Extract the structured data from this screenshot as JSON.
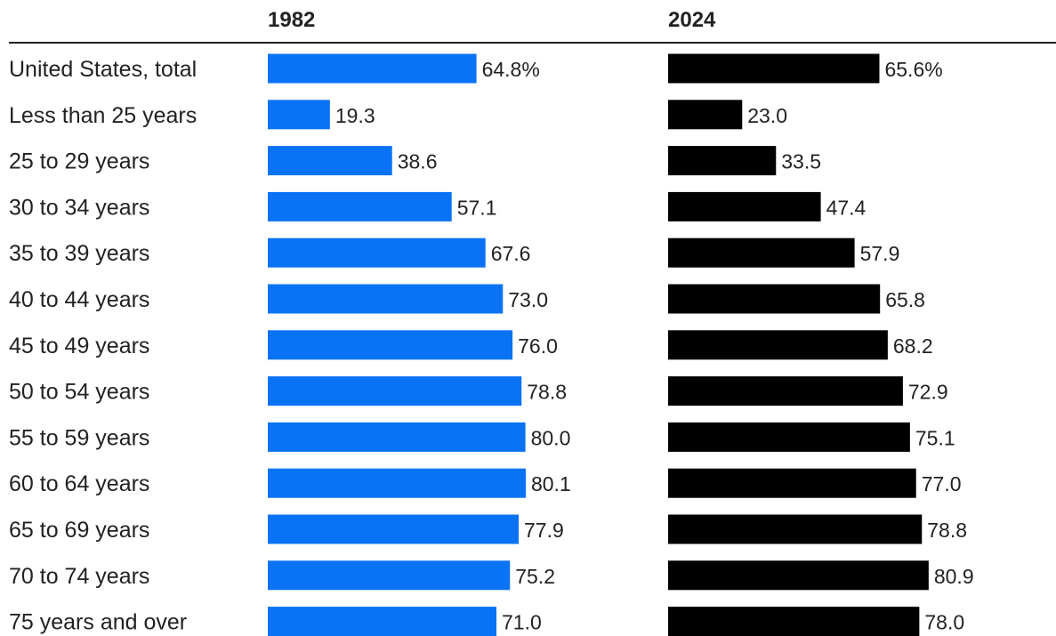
{
  "chart_data": {
    "type": "bar",
    "orientation": "horizontal",
    "categories": [
      "United States, total",
      "Less than 25 years",
      "25 to 29 years",
      "30 to 34 years",
      "35 to 39 years",
      "40 to 44 years",
      "45 to 49 years",
      "50 to 54 years",
      "55 to 59 years",
      "60 to 64 years",
      "65 to 69 years",
      "70 to 74 years",
      "75 years and over"
    ],
    "series": [
      {
        "name": "1982",
        "color": "#0a73f5",
        "values": [
          64.8,
          19.3,
          38.6,
          57.1,
          67.6,
          73.0,
          76.0,
          78.8,
          80.0,
          80.1,
          77.9,
          75.2,
          71.0
        ],
        "labels": [
          "64.8%",
          "19.3",
          "38.6",
          "57.1",
          "67.6",
          "73.0",
          "76.0",
          "78.8",
          "80.0",
          "80.1",
          "77.9",
          "75.2",
          "71.0"
        ]
      },
      {
        "name": "2024",
        "color": "#000000",
        "values": [
          65.6,
          23.0,
          33.5,
          47.4,
          57.9,
          65.8,
          68.2,
          72.9,
          75.1,
          77.0,
          78.8,
          80.9,
          78.0
        ],
        "labels": [
          "65.6%",
          "23.0",
          "33.5",
          "47.4",
          "57.9",
          "65.8",
          "68.2",
          "72.9",
          "75.1",
          "77.0",
          "78.8",
          "80.9",
          "78.0"
        ]
      }
    ],
    "xlim": [
      0,
      100
    ],
    "grid": false,
    "legend": "column headers"
  }
}
